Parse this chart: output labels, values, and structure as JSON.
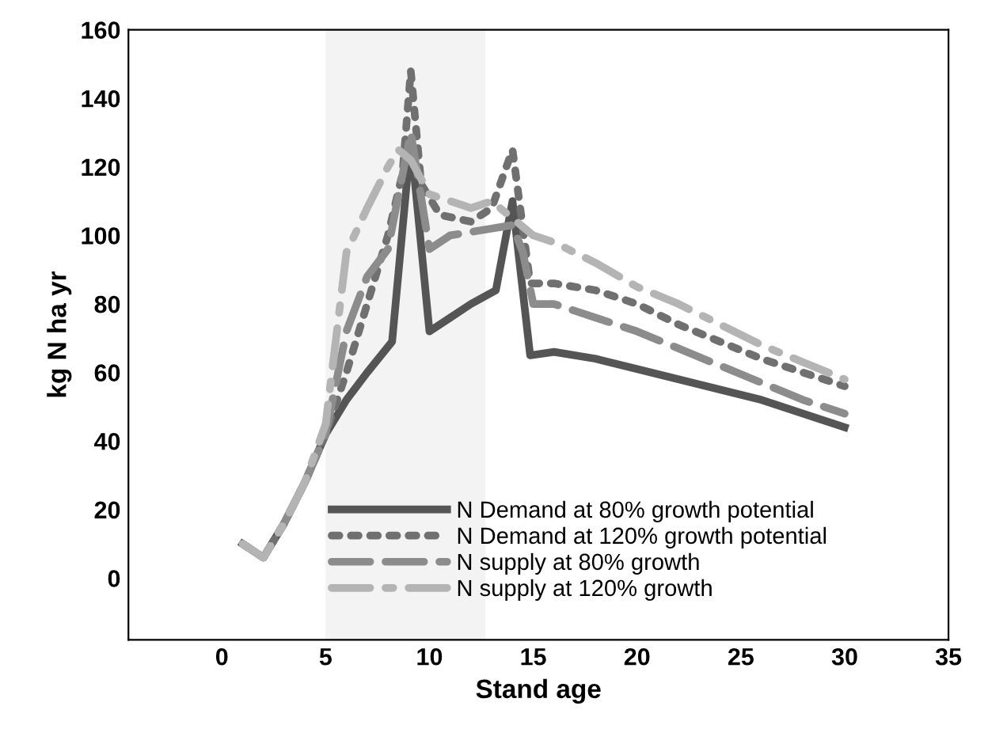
{
  "chart_data": {
    "type": "line",
    "xlabel": "Stand age",
    "ylabel": "kg N ha yr",
    "xlim": [
      -4.5,
      35
    ],
    "xticks": [
      0,
      5,
      10,
      15,
      20,
      25,
      30,
      35
    ],
    "ylim": [
      -18,
      160
    ],
    "yticks": [
      0,
      20,
      40,
      60,
      80,
      100,
      120,
      140,
      160
    ],
    "grid": false,
    "legend": "bottom",
    "marker": "none",
    "bands": [
      {
        "axis": "x",
        "from": 5,
        "to": 12.7,
        "color": "#f3f3f3"
      }
    ],
    "series": [
      {
        "name": "N Demand at 80% growth potential",
        "color": "#555555",
        "line_style": "solid",
        "x": [
          1,
          2,
          3,
          4,
          5,
          6,
          7,
          8.2,
          9.1,
          10,
          11,
          12,
          13.2,
          14,
          14.85,
          16,
          18,
          20,
          22,
          24,
          26,
          28,
          30
        ],
        "values": [
          10,
          6,
          16,
          28,
          42,
          52,
          60,
          69,
          128,
          72,
          76,
          80,
          84,
          110,
          65,
          66,
          64,
          61,
          58,
          55,
          52,
          48,
          44
        ]
      },
      {
        "name": "N Demand at 120% growth potential",
        "color": "#707070",
        "line_style": "dotted",
        "x": [
          1,
          2,
          3,
          4,
          5,
          6,
          7,
          8,
          8.7,
          9.1,
          9.6,
          10.5,
          12,
          13,
          14,
          14.85,
          16,
          18,
          20,
          22,
          24,
          26,
          28,
          30
        ],
        "values": [
          10,
          6,
          16,
          28,
          42,
          60,
          80,
          100,
          118,
          148,
          115,
          106,
          104,
          108,
          125,
          86,
          86,
          84,
          80,
          74,
          69,
          64,
          60,
          56
        ]
      },
      {
        "name": "N supply at 80% growth",
        "color": "#8c8c8c",
        "line_style": "dashed",
        "x": [
          1,
          2,
          3,
          4,
          5,
          6,
          7,
          8,
          9.1,
          10,
          11,
          12,
          13,
          14,
          14.5,
          15,
          16,
          18,
          20,
          22,
          24,
          26,
          28,
          30
        ],
        "values": [
          10,
          6,
          16,
          28,
          42,
          72,
          88,
          96,
          130,
          96,
          100,
          101,
          102,
          103,
          95,
          80,
          80,
          76,
          72,
          67,
          62,
          57,
          52,
          48
        ]
      },
      {
        "name": "N supply at 120% growth",
        "color": "#b4b4b4",
        "line_style": "dashdot",
        "x": [
          1,
          2,
          3,
          4,
          5,
          6,
          7,
          8,
          8.5,
          9.1,
          10,
          11,
          12,
          13,
          14,
          15,
          16,
          18,
          20,
          22,
          24,
          26,
          28,
          30
        ],
        "values": [
          10,
          6,
          16,
          28,
          45,
          95,
          108,
          120,
          125,
          122,
          112,
          110,
          108,
          110,
          105,
          100,
          98,
          92,
          85,
          80,
          74,
          68,
          63,
          58
        ]
      }
    ]
  }
}
